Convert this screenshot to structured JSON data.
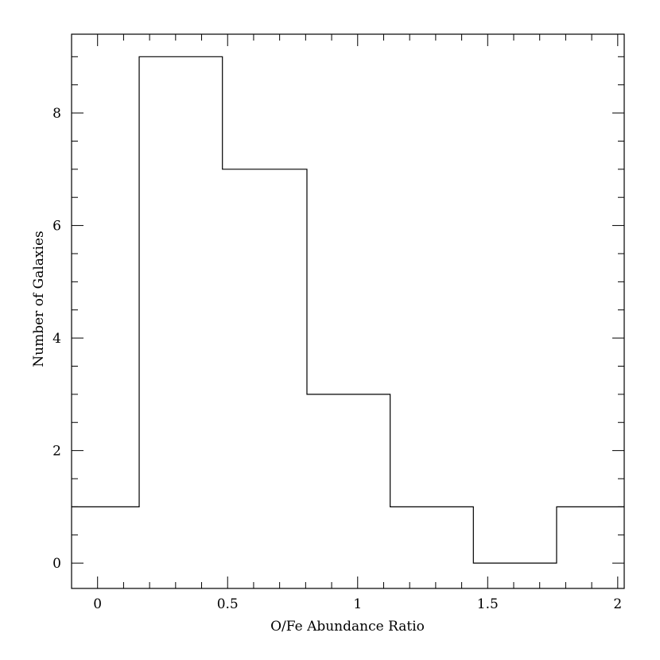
{
  "chart_data": {
    "type": "bar",
    "histogram": true,
    "xlabel": "O/Fe Abundance Ratio",
    "ylabel": "Number of Galaxies",
    "xlim": [
      -0.1,
      2.025
    ],
    "ylim": [
      -0.45,
      9.4
    ],
    "x_ticks": [
      0,
      0.5,
      1,
      1.5,
      2
    ],
    "x_tick_labels": [
      "0",
      "0.5",
      "1",
      "1.5",
      "2"
    ],
    "y_ticks": [
      0,
      2,
      4,
      6,
      8
    ],
    "y_tick_labels": [
      "0",
      "2",
      "4",
      "6",
      "8"
    ],
    "x_minor_step": 0.1,
    "y_minor_step": 0.5,
    "bins": [
      {
        "x0": -0.1,
        "x1": 0.16,
        "value": 1
      },
      {
        "x0": 0.16,
        "x1": 0.48,
        "value": 9
      },
      {
        "x0": 0.48,
        "x1": 0.805,
        "value": 7
      },
      {
        "x0": 0.805,
        "x1": 1.125,
        "value": 3
      },
      {
        "x0": 1.125,
        "x1": 1.445,
        "value": 1
      },
      {
        "x0": 1.445,
        "x1": 1.765,
        "value": 0
      },
      {
        "x0": 1.765,
        "x1": 2.025,
        "value": 1
      }
    ],
    "grid": false
  }
}
